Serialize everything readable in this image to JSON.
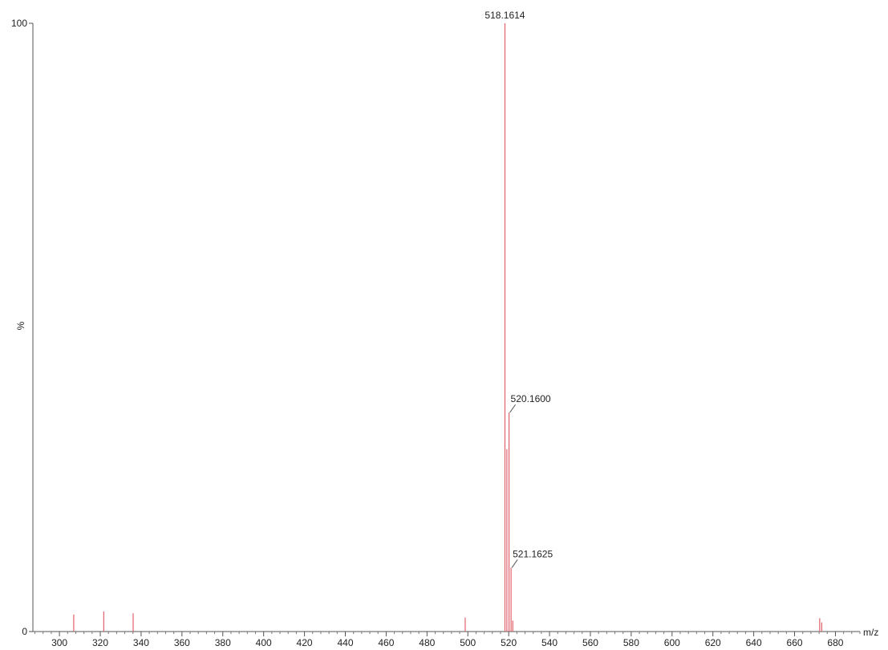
{
  "chart_data": {
    "type": "bar",
    "title": "",
    "xlabel": "m/z",
    "ylabel": "%",
    "xlim": [
      287,
      692
    ],
    "ylim": [
      0,
      100
    ],
    "y_ticks": [
      "0",
      "100"
    ],
    "x_ticks": [
      300,
      320,
      340,
      360,
      380,
      400,
      420,
      440,
      460,
      480,
      500,
      520,
      540,
      560,
      580,
      600,
      620,
      640,
      660,
      680
    ],
    "bar_color": "#e0606a",
    "peaks": [
      {
        "x": 307.0,
        "y": 2.8
      },
      {
        "x": 321.7,
        "y": 3.3
      },
      {
        "x": 336.1,
        "y": 3.0
      },
      {
        "x": 498.7,
        "y": 2.3
      },
      {
        "x": 518.1614,
        "y": 100
      },
      {
        "x": 519.1,
        "y": 30
      },
      {
        "x": 520.16,
        "y": 36
      },
      {
        "x": 521.1625,
        "y": 10.5
      },
      {
        "x": 522.0,
        "y": 1.8
      },
      {
        "x": 672.3,
        "y": 2.2
      },
      {
        "x": 673.3,
        "y": 1.5
      }
    ],
    "annotations": [
      {
        "label": "518.1614",
        "x": 518.1614,
        "y": 100
      },
      {
        "label": "520.1600",
        "x": 520.16,
        "y": 36
      },
      {
        "label": "521.1625",
        "x": 521.1625,
        "y": 10.5
      }
    ]
  }
}
